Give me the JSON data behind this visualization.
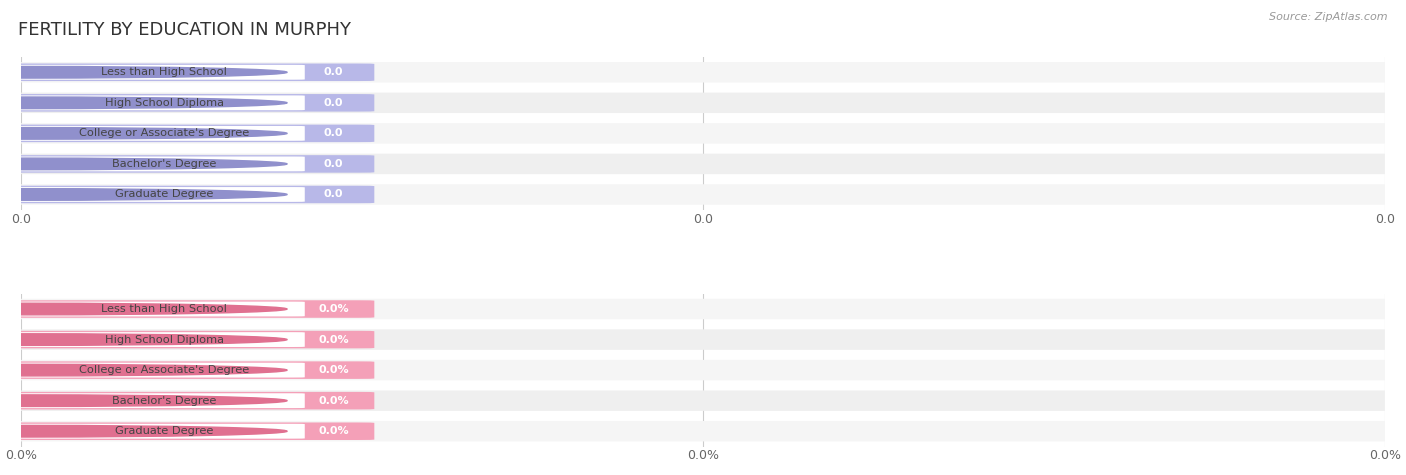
{
  "title": "FERTILITY BY EDUCATION IN MURPHY",
  "source": "Source: ZipAtlas.com",
  "categories": [
    "Less than High School",
    "High School Diploma",
    "College or Associate's Degree",
    "Bachelor's Degree",
    "Graduate Degree"
  ],
  "top_values": [
    0.0,
    0.0,
    0.0,
    0.0,
    0.0
  ],
  "bottom_values": [
    0.0,
    0.0,
    0.0,
    0.0,
    0.0
  ],
  "top_bar_fill": "#b8b8e8",
  "top_bar_light": "#dcdcf5",
  "top_dot_color": "#9090cc",
  "bottom_bar_fill": "#f4a0b8",
  "bottom_bar_light": "#fce0e8",
  "bottom_dot_color": "#e07090",
  "row_alt_color": "#f0f0f0",
  "xtick_labels_top": [
    "0.0",
    "0.0",
    "0.0"
  ],
  "xtick_labels_bottom": [
    "0.0%",
    "0.0%",
    "0.0%"
  ],
  "background_color": "#ffffff",
  "title_fontsize": 13,
  "tick_fontsize": 9,
  "source_fontsize": 8,
  "bar_value_top": "0.0",
  "bar_value_bottom": "0.0%"
}
